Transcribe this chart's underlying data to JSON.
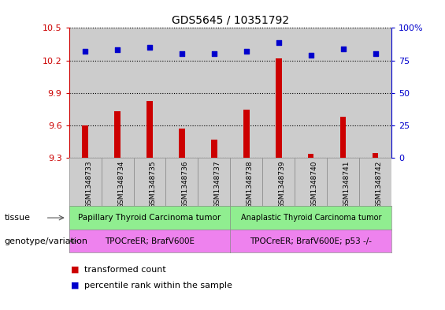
{
  "title": "GDS5645 / 10351792",
  "samples": [
    "GSM1348733",
    "GSM1348734",
    "GSM1348735",
    "GSM1348736",
    "GSM1348737",
    "GSM1348738",
    "GSM1348739",
    "GSM1348740",
    "GSM1348741",
    "GSM1348742"
  ],
  "transformed_count": [
    9.6,
    9.73,
    9.83,
    9.57,
    9.47,
    9.75,
    10.22,
    9.34,
    9.68,
    9.35
  ],
  "percentile_rank": [
    82,
    83,
    85,
    80,
    80,
    82,
    89,
    79,
    84,
    80
  ],
  "ylim_left": [
    9.3,
    10.5
  ],
  "ylim_right": [
    0,
    100
  ],
  "yticks_left": [
    9.3,
    9.6,
    9.9,
    10.2,
    10.5
  ],
  "yticks_right": [
    0,
    25,
    50,
    75,
    100
  ],
  "ytick_labels_left": [
    "9.3",
    "9.6",
    "9.9",
    "10.2",
    "10.5"
  ],
  "ytick_labels_right": [
    "0",
    "25",
    "50",
    "75",
    "100%"
  ],
  "bar_color": "#cc0000",
  "dot_color": "#0000cc",
  "tissue_group1": "Papillary Thyroid Carcinoma tumor",
  "tissue_group2": "Anaplastic Thyroid Carcinoma tumor",
  "genotype_group1": "TPOCreER; BrafV600E",
  "genotype_group2": "TPOCreER; BrafV600E; p53 -/-",
  "tissue_color": "#90ee90",
  "genotype_color": "#ee82ee",
  "split_idx": 5,
  "label_tissue": "tissue",
  "label_genotype": "genotype/variation",
  "legend_bar_label": "transformed count",
  "legend_dot_label": "percentile rank within the sample",
  "bar_color_legend": "#cc0000",
  "dot_color_legend": "#0000cc",
  "sample_bg_color": "#cccccc",
  "plot_bg_color": "#ffffff"
}
